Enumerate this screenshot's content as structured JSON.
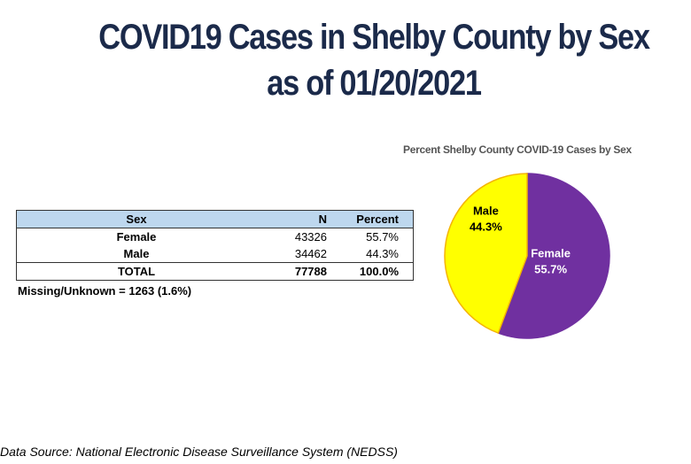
{
  "title_line1": "COVID19 Cases in Shelby County by Sex",
  "title_line2": "as of 01/20/2021",
  "table": {
    "headers": [
      "Sex",
      "N",
      "Percent"
    ],
    "rows": [
      [
        "Female",
        "43326",
        "55.7%"
      ],
      [
        "Male",
        "34462",
        "44.3%"
      ]
    ],
    "total": [
      "TOTAL",
      "77788",
      "100.0%"
    ]
  },
  "missing": "Missing/Unknown = 1263 (1.6%)",
  "source": "Data Source: National Electronic Disease Surveillance System (NEDSS)",
  "chart_data": {
    "type": "pie",
    "title": "Percent Shelby County COVID-19 Cases by Sex",
    "slices": [
      {
        "label": "Female",
        "value": 55.7,
        "display": "55.7%",
        "color": "#7030a0",
        "text_color": "#ffffff"
      },
      {
        "label": "Male",
        "value": 44.3,
        "display": "44.3%",
        "color": "#ffff00",
        "text_color": "#000000"
      }
    ]
  }
}
